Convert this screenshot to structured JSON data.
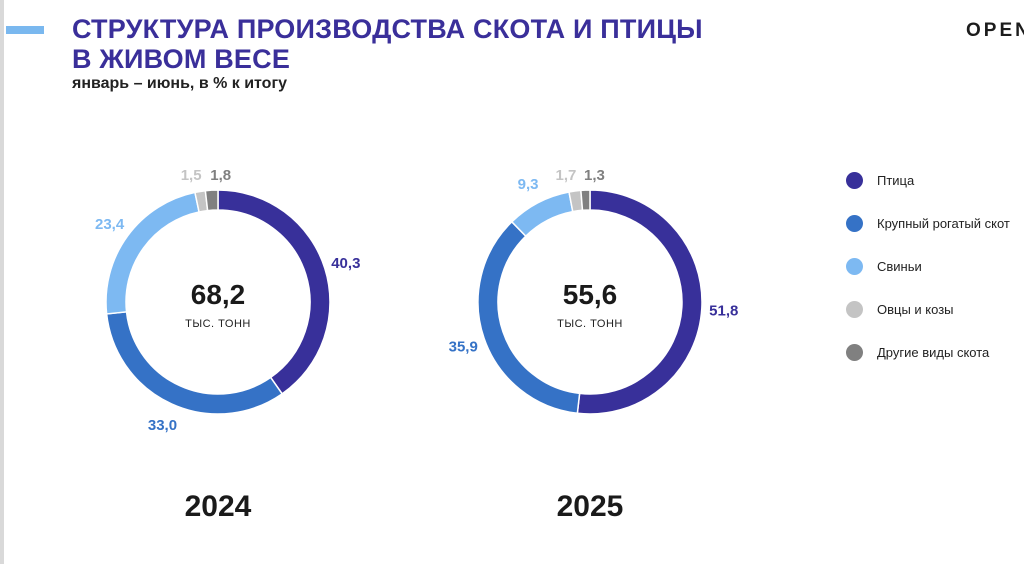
{
  "header": {
    "title_line1": "СТРУКТУРА ПРОИЗВОДСТВА СКОТА И ПТИЦЫ",
    "title_line2": "В ЖИВОМ ВЕСЕ",
    "subtitle": "январь – июнь, в % к итогу",
    "logo_text": "OPEN"
  },
  "colors": {
    "title": "#3a2f9a",
    "accent_bar": "#7ab8ef",
    "center_value": "#1a1a1a",
    "year_label": "#1a1a1a"
  },
  "chart_data": [
    {
      "type": "pie",
      "variant": "donut",
      "year": "2024",
      "center_value": "68,2",
      "center_unit": "тыс. тонн",
      "slices": [
        {
          "label": "Птица",
          "value": 40.3,
          "text": "40,3",
          "color": "#38309a"
        },
        {
          "label": "Крупный рогатый скот",
          "value": 33.0,
          "text": "33,0",
          "color": "#3572c6"
        },
        {
          "label": "Свиньи",
          "value": 23.4,
          "text": "23,4",
          "color": "#7db9f2"
        },
        {
          "label": "Овцы и козы",
          "value": 1.5,
          "text": "1,5",
          "color": "#c4c4c4"
        },
        {
          "label": "Другие виды скота",
          "value": 1.8,
          "text": "1,8",
          "color": "#808080"
        }
      ]
    },
    {
      "type": "pie",
      "variant": "donut",
      "year": "2025",
      "center_value": "55,6",
      "center_unit": "тыс. тонн",
      "slices": [
        {
          "label": "Птица",
          "value": 51.8,
          "text": "51,8",
          "color": "#38309a"
        },
        {
          "label": "Крупный рогатый скот",
          "value": 35.9,
          "text": "35,9",
          "color": "#3572c6"
        },
        {
          "label": "Свиньи",
          "value": 9.3,
          "text": "9,3",
          "color": "#7db9f2"
        },
        {
          "label": "Овцы и козы",
          "value": 1.7,
          "text": "1,7",
          "color": "#c4c4c4"
        },
        {
          "label": "Другие виды скота",
          "value": 1.3,
          "text": "1,3",
          "color": "#808080"
        }
      ]
    }
  ],
  "legend": [
    {
      "label": "Птица",
      "color": "#38309a"
    },
    {
      "label": "Крупный рогатый скот",
      "color": "#3572c6"
    },
    {
      "label": "Свиньи",
      "color": "#7db9f2"
    },
    {
      "label": "Овцы и козы",
      "color": "#c4c4c4"
    },
    {
      "label": "Другие виды скота",
      "color": "#808080"
    }
  ]
}
